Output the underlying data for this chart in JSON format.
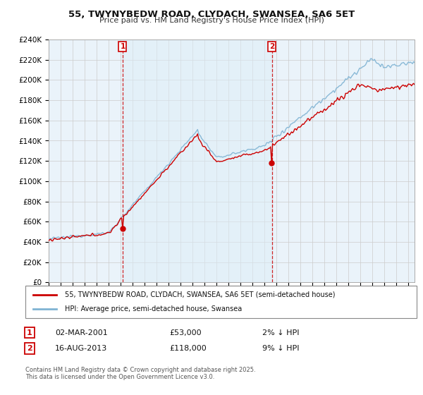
{
  "title": "55, TWYNYBEDW ROAD, CLYDACH, SWANSEA, SA6 5ET",
  "subtitle": "Price paid vs. HM Land Registry's House Price Index (HPI)",
  "legend_property": "55, TWYNYBEDW ROAD, CLYDACH, SWANSEA, SA6 5ET (semi-detached house)",
  "legend_hpi": "HPI: Average price, semi-detached house, Swansea",
  "footnote": "Contains HM Land Registry data © Crown copyright and database right 2025.\nThis data is licensed under the Open Government Licence v3.0.",
  "sale1_label": "1",
  "sale1_date": "02-MAR-2001",
  "sale1_price": "£53,000",
  "sale1_hpi": "2% ↓ HPI",
  "sale1_year": 2001.17,
  "sale1_value": 53000,
  "sale2_label": "2",
  "sale2_date": "16-AUG-2013",
  "sale2_price": "£118,000",
  "sale2_hpi": "9% ↓ HPI",
  "sale2_year": 2013.62,
  "sale2_value": 118000,
  "property_color": "#cc0000",
  "hpi_color": "#7fb3d3",
  "vline_color": "#cc0000",
  "shade_color": "#ddeeff",
  "ylim": [
    0,
    240000
  ],
  "yticks": [
    0,
    20000,
    40000,
    60000,
    80000,
    100000,
    120000,
    140000,
    160000,
    180000,
    200000,
    220000,
    240000
  ],
  "xstart": 1995,
  "xend": 2025.5,
  "background_color": "#ffffff",
  "grid_color": "#cccccc"
}
